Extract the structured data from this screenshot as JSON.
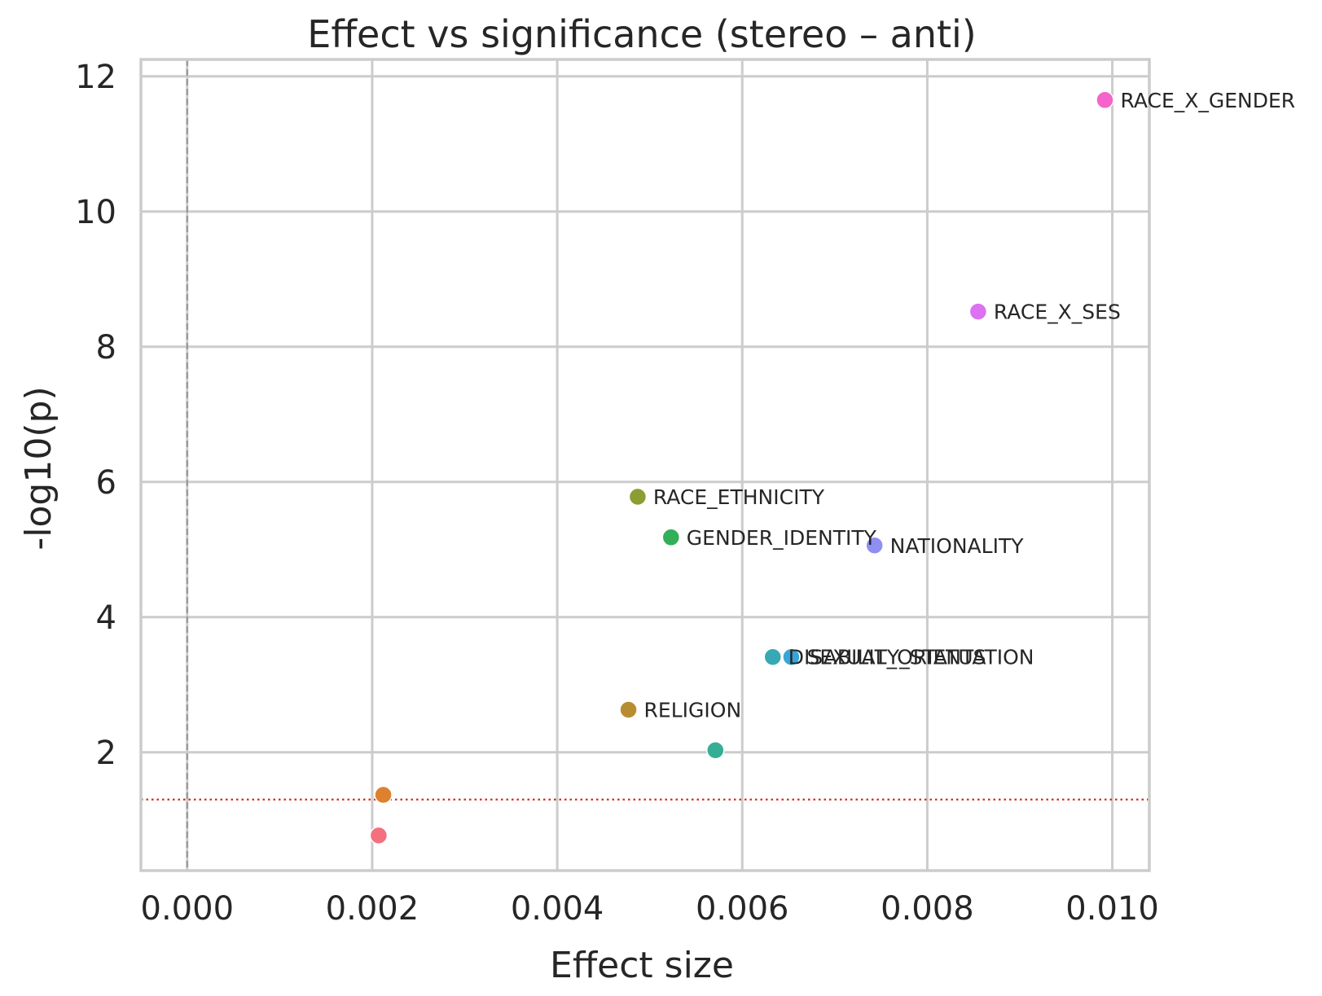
{
  "chart_data": {
    "type": "scatter",
    "title": "Effect vs significance (stereo – anti)",
    "xlabel": "Effect size",
    "ylabel": "-log10(p)",
    "xlim": [
      -0.0005,
      0.0104
    ],
    "ylim": [
      0.25,
      12.25
    ],
    "xticks": [
      0.0,
      0.002,
      0.004,
      0.006,
      0.008,
      0.01
    ],
    "xtick_labels": [
      "0.000",
      "0.002",
      "0.004",
      "0.006",
      "0.008",
      "0.010"
    ],
    "yticks": [
      2,
      4,
      6,
      8,
      10,
      12
    ],
    "ytick_labels": [
      "2",
      "4",
      "6",
      "8",
      "10",
      "12"
    ],
    "grid": true,
    "legend": "none",
    "reference_lines": [
      {
        "orientation": "vertical",
        "value": 0.0,
        "style": "dashed",
        "color": "#999999"
      },
      {
        "orientation": "horizontal",
        "value": 1.301,
        "style": "dotted",
        "color": "#d62728"
      }
    ],
    "points": [
      {
        "label": "RACE_X_GENDER",
        "x": 0.00992,
        "y": 11.65,
        "color": "#f564c8"
      },
      {
        "label": "RACE_X_SES",
        "x": 0.00855,
        "y": 8.52,
        "color": "#dc71f1"
      },
      {
        "label": "RACE_ETHNICITY",
        "x": 0.00487,
        "y": 5.78,
        "color": "#8c9d32"
      },
      {
        "label": "GENDER_IDENTITY",
        "x": 0.00523,
        "y": 5.18,
        "color": "#33ae59"
      },
      {
        "label": "NATIONALITY",
        "x": 0.00743,
        "y": 5.06,
        "color": "#8e8ff2"
      },
      {
        "label": "DISABILITY_STATUS",
        "x": 0.00633,
        "y": 3.41,
        "color": "#36a9b4"
      },
      {
        "label": "SEXUAL_ORIENTATION",
        "x": 0.00653,
        "y": 3.41,
        "color": "#38a5d8"
      },
      {
        "label": "RELIGION",
        "x": 0.00477,
        "y": 2.63,
        "color": "#b88d32"
      },
      {
        "label": "",
        "x": 0.00571,
        "y": 2.03,
        "color": "#35ae95"
      },
      {
        "label": "",
        "x": 0.00212,
        "y": 1.37,
        "color": "#dd812f"
      },
      {
        "label": "",
        "x": 0.00207,
        "y": 0.77,
        "color": "#f4707f"
      }
    ]
  }
}
